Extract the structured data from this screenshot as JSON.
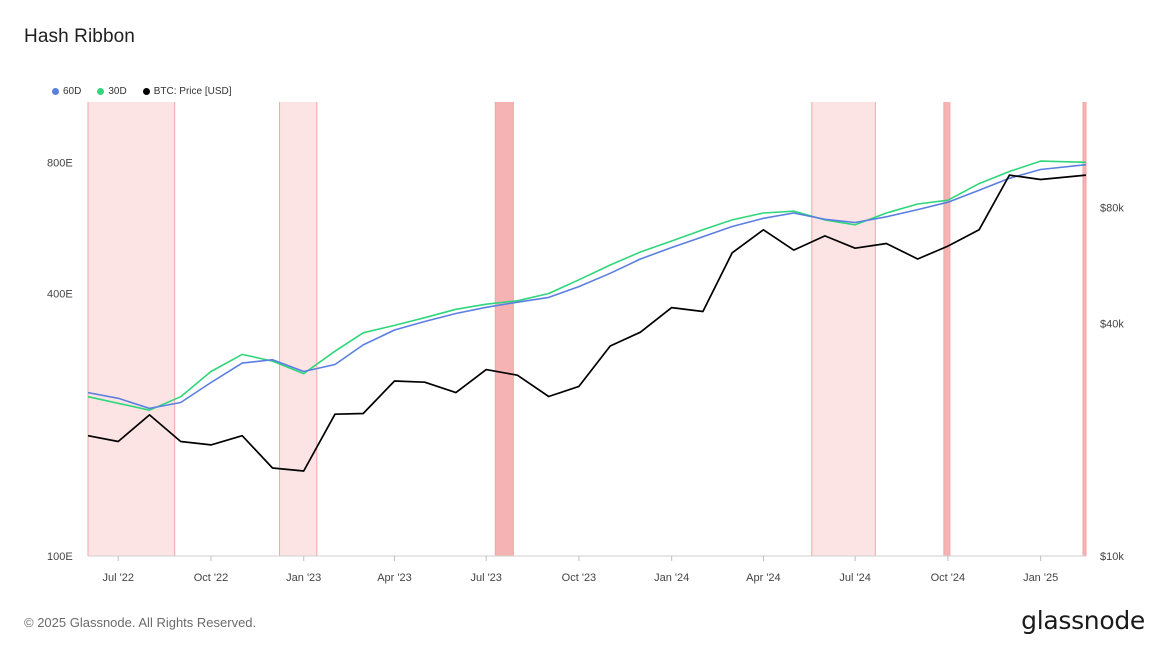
{
  "header": {
    "title": "Hash Ribbon"
  },
  "footer": {
    "copyright": "© 2025 Glassnode. All Rights Reserved.",
    "brand": "glassnode"
  },
  "colors": {
    "hash60": "#5b7fe0",
    "hash30": "#2fd67b",
    "price": "#000000",
    "capitulation_light": "#fde4e4",
    "capitulation_strong": "#f6b3b3"
  },
  "chart_data": {
    "type": "line",
    "title": "Hash Ribbon",
    "legend_position": "top-left",
    "grid": false,
    "x_ticks": [
      "Jul '22",
      "Oct '22",
      "Jan '23",
      "Apr '23",
      "Jul '23",
      "Oct '23",
      "Jan '24",
      "Apr '24",
      "Jul '24",
      "Oct '24",
      "Jan '25"
    ],
    "x_tick_dates": [
      "2022-07-01",
      "2022-10-01",
      "2023-01-01",
      "2023-04-01",
      "2023-07-01",
      "2023-10-01",
      "2024-01-01",
      "2024-04-01",
      "2024-07-01",
      "2024-10-01",
      "2025-01-01"
    ],
    "x_range": [
      "2022-06-01",
      "2025-02-15"
    ],
    "y_left": {
      "scale": "log",
      "ticks": [
        "100E",
        "400E",
        "800E"
      ],
      "tick_values": [
        100,
        400,
        800
      ],
      "range": [
        100,
        1100
      ]
    },
    "y_right": {
      "scale": "log",
      "ticks": [
        "$10k",
        "$40k",
        "$80k"
      ],
      "tick_values": [
        10000,
        40000,
        80000
      ],
      "range": [
        10000,
        150000
      ]
    },
    "series": [
      {
        "name": "60D",
        "axis": "left",
        "points": [
          [
            "2022-06-01",
            237
          ],
          [
            "2022-07-01",
            230
          ],
          [
            "2022-08-01",
            218
          ],
          [
            "2022-09-01",
            225
          ],
          [
            "2022-10-01",
            250
          ],
          [
            "2022-11-01",
            277
          ],
          [
            "2022-12-01",
            282
          ],
          [
            "2023-01-01",
            265
          ],
          [
            "2023-02-01",
            275
          ],
          [
            "2023-03-01",
            305
          ],
          [
            "2023-04-01",
            330
          ],
          [
            "2023-05-01",
            345
          ],
          [
            "2023-06-01",
            360
          ],
          [
            "2023-07-01",
            372
          ],
          [
            "2023-08-01",
            382
          ],
          [
            "2023-09-01",
            392
          ],
          [
            "2023-10-01",
            415
          ],
          [
            "2023-11-01",
            445
          ],
          [
            "2023-12-01",
            480
          ],
          [
            "2024-01-01",
            510
          ],
          [
            "2024-02-01",
            540
          ],
          [
            "2024-03-01",
            570
          ],
          [
            "2024-04-01",
            595
          ],
          [
            "2024-05-01",
            612
          ],
          [
            "2024-06-01",
            592
          ],
          [
            "2024-07-01",
            582
          ],
          [
            "2024-08-01",
            600
          ],
          [
            "2024-09-01",
            623
          ],
          [
            "2024-10-01",
            648
          ],
          [
            "2024-11-01",
            690
          ],
          [
            "2024-12-01",
            735
          ],
          [
            "2025-01-01",
            770
          ],
          [
            "2025-02-15",
            790
          ]
        ]
      },
      {
        "name": "30D",
        "axis": "left",
        "points": [
          [
            "2022-06-01",
            232
          ],
          [
            "2022-07-01",
            224
          ],
          [
            "2022-08-01",
            216
          ],
          [
            "2022-09-01",
            232
          ],
          [
            "2022-10-01",
            265
          ],
          [
            "2022-11-01",
            290
          ],
          [
            "2022-12-01",
            280
          ],
          [
            "2023-01-01",
            262
          ],
          [
            "2023-02-01",
            295
          ],
          [
            "2023-03-01",
            325
          ],
          [
            "2023-04-01",
            338
          ],
          [
            "2023-05-01",
            352
          ],
          [
            "2023-06-01",
            368
          ],
          [
            "2023-07-01",
            378
          ],
          [
            "2023-08-01",
            385
          ],
          [
            "2023-09-01",
            400
          ],
          [
            "2023-10-01",
            430
          ],
          [
            "2023-11-01",
            465
          ],
          [
            "2023-12-01",
            498
          ],
          [
            "2024-01-01",
            528
          ],
          [
            "2024-02-01",
            560
          ],
          [
            "2024-03-01",
            590
          ],
          [
            "2024-04-01",
            612
          ],
          [
            "2024-05-01",
            618
          ],
          [
            "2024-06-01",
            590
          ],
          [
            "2024-07-01",
            575
          ],
          [
            "2024-08-01",
            612
          ],
          [
            "2024-09-01",
            642
          ],
          [
            "2024-10-01",
            655
          ],
          [
            "2024-11-01",
            715
          ],
          [
            "2024-12-01",
            762
          ],
          [
            "2025-01-01",
            805
          ],
          [
            "2025-02-15",
            800
          ]
        ]
      },
      {
        "name": "BTC: Price [USD]",
        "axis": "right",
        "points": [
          [
            "2022-06-01",
            20500
          ],
          [
            "2022-07-01",
            19800
          ],
          [
            "2022-08-01",
            23200
          ],
          [
            "2022-09-01",
            19800
          ],
          [
            "2022-10-01",
            19400
          ],
          [
            "2022-11-01",
            20500
          ],
          [
            "2022-12-01",
            16900
          ],
          [
            "2023-01-01",
            16600
          ],
          [
            "2023-02-01",
            23300
          ],
          [
            "2023-03-01",
            23400
          ],
          [
            "2023-04-01",
            28400
          ],
          [
            "2023-05-01",
            28200
          ],
          [
            "2023-06-01",
            26500
          ],
          [
            "2023-07-01",
            30400
          ],
          [
            "2023-08-01",
            29400
          ],
          [
            "2023-09-01",
            25900
          ],
          [
            "2023-10-01",
            27500
          ],
          [
            "2023-11-01",
            35000
          ],
          [
            "2023-12-01",
            38000
          ],
          [
            "2024-01-01",
            44000
          ],
          [
            "2024-02-01",
            43000
          ],
          [
            "2024-03-01",
            61000
          ],
          [
            "2024-04-01",
            70000
          ],
          [
            "2024-05-01",
            62000
          ],
          [
            "2024-06-01",
            67500
          ],
          [
            "2024-07-01",
            62700
          ],
          [
            "2024-08-01",
            64500
          ],
          [
            "2024-09-01",
            58800
          ],
          [
            "2024-10-01",
            63500
          ],
          [
            "2024-11-01",
            70000
          ],
          [
            "2024-12-01",
            97000
          ],
          [
            "2025-01-01",
            94500
          ],
          [
            "2025-02-15",
            97000
          ]
        ]
      }
    ],
    "capitulation_bands": [
      {
        "start": "2022-06-01",
        "end": "2022-08-26",
        "intensity": "light"
      },
      {
        "start": "2022-12-08",
        "end": "2023-01-14",
        "intensity": "light"
      },
      {
        "start": "2023-07-10",
        "end": "2023-07-28",
        "intensity": "strong"
      },
      {
        "start": "2024-05-19",
        "end": "2024-07-21",
        "intensity": "light"
      },
      {
        "start": "2024-09-27",
        "end": "2024-10-03",
        "intensity": "strong"
      },
      {
        "start": "2025-02-12",
        "end": "2025-02-15",
        "intensity": "strong"
      }
    ]
  }
}
